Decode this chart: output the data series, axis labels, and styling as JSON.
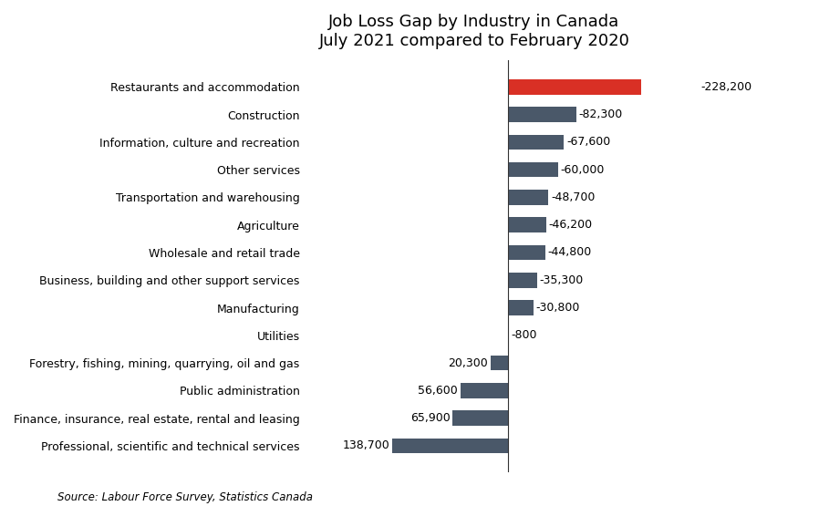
{
  "title": "Job Loss Gap by Industry in Canada\nJuly 2021 compared to February 2020",
  "categories": [
    "Professional, scientific and technical services",
    "Finance, insurance, real estate, rental and leasing",
    "Public administration",
    "Forestry, fishing, mining, quarrying, oil and gas",
    "Utilities",
    "Manufacturing",
    "Business, building and other support services",
    "Wholesale and retail trade",
    "Agriculture",
    "Transportation and warehousing",
    "Other services",
    "Information, culture and recreation",
    "Construction",
    "Restaurants and accommodation"
  ],
  "values": [
    138700,
    65900,
    56600,
    20300,
    -800,
    -30800,
    -35300,
    -44800,
    -46200,
    -48700,
    -60000,
    -67600,
    -82300,
    -228200
  ],
  "bar_color_default": "#4a5869",
  "bar_color_highlight": "#d93025",
  "highlight_category": "Restaurants and accommodation",
  "source_text": "Source: Labour Force Survey, Statistics Canada",
  "background_color": "#ffffff",
  "title_fontsize": 13,
  "label_fontsize": 9,
  "value_fontsize": 9,
  "source_fontsize": 8.5,
  "xlim_left": -240000,
  "xlim_right": 160000
}
